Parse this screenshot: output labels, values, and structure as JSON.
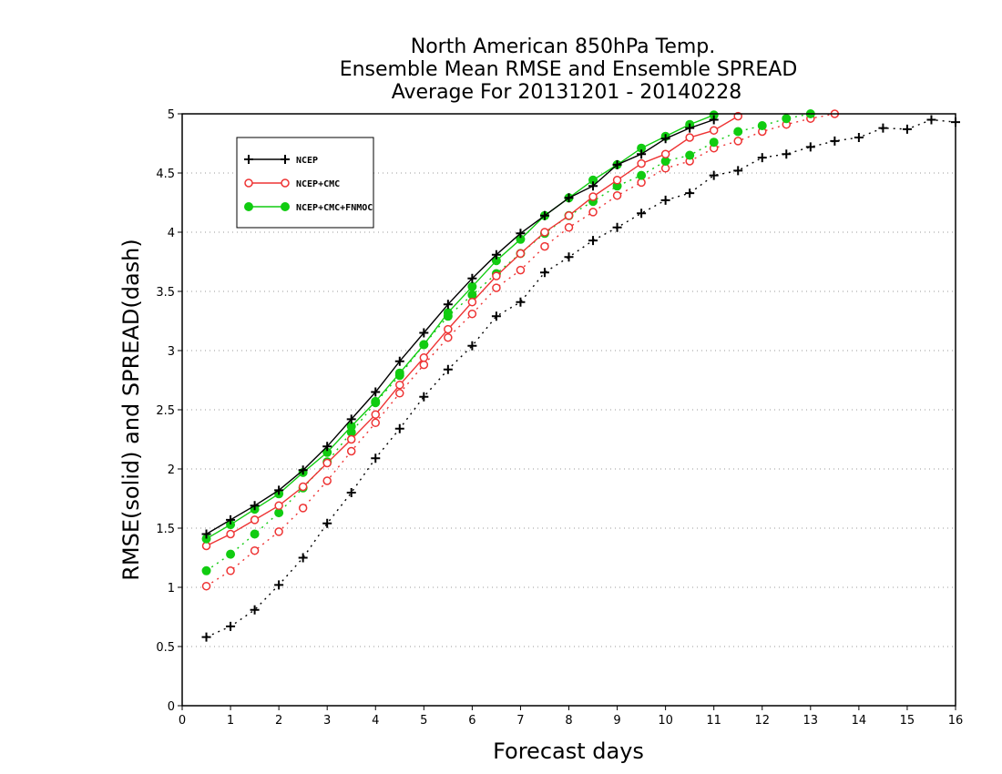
{
  "chart_data": {
    "type": "line",
    "title": [
      "North American 850hPa Temp.",
      "Ensemble Mean RMSE and Ensemble SPREAD",
      "Average For 20131201 - 20140228"
    ],
    "xlabel": "Forecast days",
    "ylabel": "RMSE(solid) and SPREAD(dash)",
    "xlim": [
      0,
      16
    ],
    "ylim": [
      0,
      5
    ],
    "xticks": [
      "0",
      "1",
      "2",
      "3",
      "4",
      "5",
      "6",
      "7",
      "8",
      "9",
      "10",
      "11",
      "12",
      "13",
      "14",
      "15",
      "16"
    ],
    "yticks": [
      "0",
      "0.5",
      "1",
      "1.5",
      "2",
      "2.5",
      "3",
      "3.5",
      "4",
      "4.5",
      "5"
    ],
    "grid": "horizontal dotted",
    "legend_position": "top-left",
    "series": [
      {
        "name": "NCEP",
        "color": "#000000",
        "marker": "plus",
        "metric": "RMSE",
        "style": "solid",
        "x": [
          0.5,
          1,
          1.5,
          2,
          2.5,
          3,
          3.5,
          4,
          4.5,
          5,
          5.5,
          6,
          6.5,
          7,
          7.5,
          8,
          8.5,
          9,
          9.5,
          10,
          10.5,
          11
        ],
        "y": [
          1.45,
          1.57,
          1.69,
          1.82,
          1.99,
          2.19,
          2.42,
          2.65,
          2.91,
          3.15,
          3.39,
          3.61,
          3.81,
          3.99,
          4.14,
          4.29,
          4.39,
          4.57,
          4.66,
          4.79,
          4.88,
          4.95
        ]
      },
      {
        "name": "NCEP+CMC",
        "color": "#ee3333",
        "marker": "open-circle",
        "metric": "RMSE",
        "style": "solid",
        "x": [
          0.5,
          1,
          1.5,
          2,
          2.5,
          3,
          3.5,
          4,
          4.5,
          5,
          5.5,
          6,
          6.5,
          7,
          7.5,
          8,
          8.5,
          9,
          9.5,
          10,
          10.5,
          11,
          11.5
        ],
        "y": [
          1.35,
          1.45,
          1.57,
          1.69,
          1.85,
          2.05,
          2.25,
          2.46,
          2.71,
          2.94,
          3.18,
          3.41,
          3.63,
          3.82,
          4.0,
          4.14,
          4.3,
          4.44,
          4.58,
          4.66,
          4.8,
          4.86,
          4.98
        ]
      },
      {
        "name": "NCEP+CMC+FNMOC",
        "color": "#11cc11",
        "marker": "filled-circle",
        "metric": "RMSE",
        "style": "solid",
        "x": [
          0.5,
          1,
          1.5,
          2,
          2.5,
          3,
          3.5,
          4,
          4.5,
          5,
          5.5,
          6,
          6.5,
          7,
          7.5,
          8,
          8.5,
          9,
          9.5,
          10,
          10.5,
          11
        ],
        "y": [
          1.41,
          1.53,
          1.66,
          1.79,
          1.97,
          2.14,
          2.36,
          2.57,
          2.81,
          3.05,
          3.32,
          3.54,
          3.76,
          3.94,
          4.14,
          4.29,
          4.44,
          4.57,
          4.71,
          4.81,
          4.91,
          4.99
        ]
      },
      {
        "name": "NCEP",
        "color": "#000000",
        "marker": "plus",
        "metric": "SPREAD",
        "style": "dotted",
        "x": [
          0.5,
          1,
          1.5,
          2,
          2.5,
          3,
          3.5,
          4,
          4.5,
          5,
          5.5,
          6,
          6.5,
          7,
          7.5,
          8,
          8.5,
          9,
          9.5,
          10,
          10.5,
          11,
          11.5,
          12,
          12.5,
          13,
          13.5,
          14,
          14.5,
          15,
          15.5,
          16
        ],
        "y": [
          0.58,
          0.67,
          0.81,
          1.02,
          1.25,
          1.54,
          1.8,
          2.09,
          2.34,
          2.61,
          2.84,
          3.04,
          3.29,
          3.41,
          3.66,
          3.79,
          3.93,
          4.04,
          4.16,
          4.27,
          4.33,
          4.48,
          4.52,
          4.63,
          4.66,
          4.72,
          4.77,
          4.8,
          4.88,
          4.87,
          4.95,
          4.93
        ]
      },
      {
        "name": "NCEP+CMC",
        "color": "#ee3333",
        "marker": "open-circle",
        "metric": "SPREAD",
        "style": "dotted",
        "x": [
          0.5,
          1,
          1.5,
          2,
          2.5,
          3,
          3.5,
          4,
          4.5,
          5,
          5.5,
          6,
          6.5,
          7,
          7.5,
          8,
          8.5,
          9,
          9.5,
          10,
          10.5,
          11,
          11.5,
          12,
          12.5,
          13,
          13.5
        ],
        "y": [
          1.01,
          1.14,
          1.31,
          1.47,
          1.67,
          1.9,
          2.15,
          2.39,
          2.64,
          2.88,
          3.11,
          3.31,
          3.53,
          3.68,
          3.88,
          4.04,
          4.17,
          4.31,
          4.42,
          4.54,
          4.6,
          4.71,
          4.77,
          4.85,
          4.91,
          4.96,
          5.0
        ]
      },
      {
        "name": "NCEP+CMC+FNMOC",
        "color": "#11cc11",
        "marker": "filled-circle",
        "metric": "SPREAD",
        "style": "dotted",
        "x": [
          0.5,
          1,
          1.5,
          2,
          2.5,
          3,
          3.5,
          4,
          4.5,
          5,
          5.5,
          6,
          6.5,
          7,
          7.5,
          8,
          8.5,
          9,
          9.5,
          10,
          10.5,
          11,
          11.5,
          12,
          12.5,
          13
        ],
        "y": [
          1.14,
          1.28,
          1.45,
          1.63,
          1.84,
          2.06,
          2.31,
          2.56,
          2.79,
          3.05,
          3.29,
          3.47,
          3.65,
          3.82,
          3.99,
          4.14,
          4.26,
          4.39,
          4.48,
          4.6,
          4.65,
          4.76,
          4.85,
          4.9,
          4.96,
          5.0
        ]
      }
    ],
    "legend": [
      {
        "label": "NCEP",
        "color": "#000000",
        "marker": "plus"
      },
      {
        "label": "NCEP+CMC",
        "color": "#ee3333",
        "marker": "open-circle"
      },
      {
        "label": "NCEP+CMC+FNMOC",
        "color": "#11cc11",
        "marker": "filled-circle"
      }
    ]
  }
}
